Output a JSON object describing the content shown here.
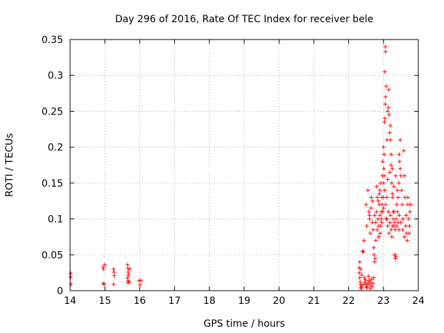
{
  "chart_data": {
    "type": "scatter",
    "title": "Day 296 of 2016, Rate Of TEC Index for receiver bele",
    "xlabel": "GPS time / hours",
    "ylabel": "ROTI / TECUs",
    "xlim": [
      14,
      24
    ],
    "ylim": [
      0,
      0.35
    ],
    "xticks": [
      14,
      15,
      16,
      17,
      18,
      19,
      20,
      21,
      22,
      23,
      24
    ],
    "xtick_labels": [
      "14",
      "15",
      "16",
      "17",
      "18",
      "19",
      "20",
      "21",
      "22",
      "23",
      "24"
    ],
    "yticks": [
      0,
      0.05,
      0.1,
      0.15,
      0.2,
      0.25,
      0.3,
      0.35
    ],
    "ytick_labels": [
      "0",
      "0.05",
      "0.1",
      "0.15",
      "0.2",
      "0.25",
      "0.3",
      "0.35"
    ],
    "grid": true,
    "marker": "+",
    "color": "#ff0000",
    "series": [
      {
        "name": "ROTI",
        "points": [
          [
            14.02,
            0.024
          ],
          [
            14.02,
            0.019
          ],
          [
            14.03,
            0.009
          ],
          [
            14.95,
            0.033
          ],
          [
            14.96,
            0.03
          ],
          [
            14.95,
            0.01
          ],
          [
            14.98,
            0.009
          ],
          [
            15.0,
            0.036
          ],
          [
            15.25,
            0.03
          ],
          [
            15.26,
            0.026
          ],
          [
            15.27,
            0.021
          ],
          [
            15.25,
            0.009
          ],
          [
            15.65,
            0.036
          ],
          [
            15.66,
            0.031
          ],
          [
            15.67,
            0.026
          ],
          [
            15.68,
            0.022
          ],
          [
            15.65,
            0.018
          ],
          [
            15.67,
            0.014
          ],
          [
            15.66,
            0.011
          ],
          [
            15.7,
            0.012
          ],
          [
            15.72,
            0.03
          ],
          [
            15.98,
            0.014
          ],
          [
            16.03,
            0.014
          ],
          [
            16.01,
            0.008
          ],
          [
            22.3,
            0.032
          ],
          [
            22.31,
            0.025
          ],
          [
            22.32,
            0.018
          ],
          [
            22.33,
            0.012
          ],
          [
            22.34,
            0.008
          ],
          [
            22.35,
            0.005
          ],
          [
            22.36,
            0.003
          ],
          [
            22.32,
            0.04
          ],
          [
            22.35,
            0.03
          ],
          [
            22.38,
            0.022
          ],
          [
            22.4,
            0.055
          ],
          [
            22.42,
            0.054
          ],
          [
            22.44,
            0.07
          ],
          [
            22.45,
            0.018
          ],
          [
            22.47,
            0.012
          ],
          [
            22.5,
            0.008
          ],
          [
            22.52,
            0.005
          ],
          [
            22.55,
            0.01
          ],
          [
            22.58,
            0.014
          ],
          [
            22.6,
            0.008
          ],
          [
            22.62,
            0.012
          ],
          [
            22.65,
            0.016
          ],
          [
            22.67,
            0.006
          ],
          [
            22.7,
            0.01
          ],
          [
            22.72,
            0.018
          ],
          [
            22.38,
            0.005
          ],
          [
            22.42,
            0.009
          ],
          [
            22.48,
            0.015
          ],
          [
            22.53,
            0.004
          ],
          [
            22.57,
            0.02
          ],
          [
            22.63,
            0.003
          ],
          [
            22.5,
            0.12
          ],
          [
            22.52,
            0.09
          ],
          [
            22.55,
            0.14
          ],
          [
            22.58,
            0.11
          ],
          [
            22.6,
            0.1
          ],
          [
            22.62,
            0.08
          ],
          [
            22.65,
            0.13
          ],
          [
            22.68,
            0.095
          ],
          [
            22.7,
            0.085
          ],
          [
            22.72,
            0.06
          ],
          [
            22.73,
            0.05
          ],
          [
            22.74,
            0.04
          ],
          [
            22.76,
            0.045
          ],
          [
            22.78,
            0.07
          ],
          [
            22.8,
            0.11
          ],
          [
            22.82,
            0.13
          ],
          [
            22.84,
            0.1
          ],
          [
            22.86,
            0.09
          ],
          [
            22.88,
            0.12
          ],
          [
            22.9,
            0.14
          ],
          [
            22.92,
            0.15
          ],
          [
            22.94,
            0.11
          ],
          [
            22.95,
            0.13
          ],
          [
            22.97,
            0.16
          ],
          [
            22.98,
            0.18
          ],
          [
            23.0,
            0.2
          ],
          [
            23.01,
            0.17
          ],
          [
            23.02,
            0.19
          ],
          [
            23.03,
            0.235
          ],
          [
            23.04,
            0.24
          ],
          [
            23.05,
            0.26
          ],
          [
            23.06,
            0.27
          ],
          [
            23.04,
            0.305
          ],
          [
            23.05,
            0.34
          ],
          [
            23.06,
            0.333
          ],
          [
            23.08,
            0.285
          ],
          [
            23.1,
            0.21
          ],
          [
            23.12,
            0.25
          ],
          [
            23.14,
            0.255
          ],
          [
            23.15,
            0.28
          ],
          [
            23.16,
            0.245
          ],
          [
            23.18,
            0.22
          ],
          [
            23.2,
            0.21
          ],
          [
            23.22,
            0.19
          ],
          [
            23.24,
            0.15
          ],
          [
            23.26,
            0.13
          ],
          [
            23.28,
            0.11
          ],
          [
            23.3,
            0.09
          ],
          [
            23.32,
            0.05
          ],
          [
            23.34,
            0.045
          ],
          [
            23.36,
            0.048
          ],
          [
            23.38,
            0.12
          ],
          [
            23.4,
            0.14
          ],
          [
            23.42,
            0.13
          ],
          [
            23.44,
            0.15
          ],
          [
            23.46,
            0.18
          ],
          [
            23.48,
            0.17
          ],
          [
            23.5,
            0.16
          ],
          [
            23.52,
            0.14
          ],
          [
            23.54,
            0.12
          ],
          [
            23.56,
            0.1
          ],
          [
            23.58,
            0.195
          ],
          [
            23.6,
            0.16
          ],
          [
            23.62,
            0.13
          ],
          [
            23.64,
            0.09
          ],
          [
            23.66,
            0.08
          ],
          [
            23.68,
            0.07
          ],
          [
            23.7,
            0.12
          ],
          [
            23.72,
            0.1
          ],
          [
            23.74,
            0.08
          ],
          [
            23.76,
            0.11
          ],
          [
            23.78,
            0.12
          ],
          [
            23.1,
            0.1
          ],
          [
            23.12,
            0.09
          ],
          [
            23.14,
            0.11
          ],
          [
            23.16,
            0.08
          ],
          [
            23.18,
            0.095
          ],
          [
            23.2,
            0.105
          ],
          [
            23.22,
            0.085
          ],
          [
            23.24,
            0.075
          ],
          [
            23.26,
            0.09
          ],
          [
            23.28,
            0.1
          ],
          [
            23.3,
            0.11
          ],
          [
            23.32,
            0.095
          ],
          [
            23.34,
            0.085
          ],
          [
            23.36,
            0.1
          ],
          [
            23.38,
            0.09
          ],
          [
            23.4,
            0.11
          ],
          [
            23.42,
            0.095
          ],
          [
            23.44,
            0.085
          ],
          [
            22.9,
            0.08
          ],
          [
            22.92,
            0.09
          ],
          [
            22.94,
            0.1
          ],
          [
            22.96,
            0.12
          ],
          [
            22.98,
            0.11
          ],
          [
            23.0,
            0.13
          ],
          [
            23.0,
            0.15
          ],
          [
            23.02,
            0.16
          ],
          [
            23.04,
            0.14
          ],
          [
            23.06,
            0.12
          ],
          [
            23.08,
            0.1
          ],
          [
            23.1,
            0.13
          ],
          [
            22.8,
            0.145
          ],
          [
            22.85,
            0.125
          ],
          [
            22.88,
            0.135
          ],
          [
            23.12,
            0.155
          ],
          [
            23.18,
            0.165
          ],
          [
            23.22,
            0.175
          ],
          [
            23.26,
            0.135
          ],
          [
            23.3,
            0.145
          ],
          [
            23.35,
            0.16
          ],
          [
            23.45,
            0.105
          ],
          [
            23.5,
            0.095
          ],
          [
            23.55,
            0.085
          ],
          [
            23.6,
            0.075
          ],
          [
            23.65,
            0.105
          ],
          [
            23.7,
            0.13
          ],
          [
            23.75,
            0.09
          ],
          [
            23.45,
            0.19
          ],
          [
            23.48,
            0.21
          ],
          [
            23.2,
            0.23
          ],
          [
            23.25,
            0.17
          ],
          [
            22.6,
            0.105
          ],
          [
            22.64,
            0.115
          ],
          [
            22.68,
            0.125
          ],
          [
            22.75,
            0.105
          ],
          [
            22.78,
            0.095
          ],
          [
            22.82,
            0.085
          ],
          [
            22.86,
            0.075
          ],
          [
            22.9,
            0.105
          ],
          [
            22.95,
            0.095
          ],
          [
            23.0,
            0.115
          ]
        ]
      }
    ]
  }
}
